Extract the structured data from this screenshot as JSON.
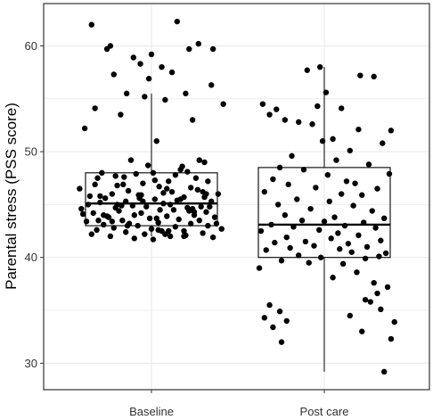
{
  "chart_data": {
    "type": "box",
    "title": "",
    "xlabel": "",
    "ylabel": "Parental stress (PSS score)",
    "categories": [
      "Baseline",
      "Post care"
    ],
    "ylim": [
      27.5,
      64
    ],
    "yticks": [
      30,
      40,
      50,
      60
    ],
    "grid": true,
    "legend": "none",
    "colors": {
      "points": "#000000",
      "box": "#000000",
      "grid": "#ebebeb",
      "frame": "#333333"
    },
    "boxes": [
      {
        "name": "Baseline",
        "min": 42.0,
        "q1": 43.0,
        "median": 45.1,
        "q3": 48.0,
        "max": 55.5
      },
      {
        "name": "Post care",
        "min": 29.2,
        "q1": 40.0,
        "median": 43.1,
        "q3": 48.5,
        "max": 58.0
      }
    ],
    "points": [
      {
        "name": "Baseline",
        "x": [
          -0.7,
          -0.48,
          0.3,
          0.72,
          -0.52,
          0.0,
          0.55,
          -0.21,
          0.44,
          -0.13,
          0.12,
          -0.44,
          0.7,
          -0.03,
          0.24,
          -0.29,
          0.4,
          0.84,
          -0.66,
          0.16,
          -0.36,
          -0.08,
          0.48,
          -0.78,
          0.06,
          -0.24,
          0.62,
          -0.58,
          0.36,
          0.02,
          -0.18,
          -0.42,
          0.28,
          -0.63,
          0.2,
          0.52,
          -0.1,
          0.66,
          -0.33,
          0.09,
          -0.84,
          0.46,
          -0.27,
          0.6,
          -0.46,
          0.14,
          0.78,
          -0.15,
          -0.72,
          0.38,
          -0.54,
          0.04,
          0.34,
          -0.3,
          0.7,
          -0.6,
          0.22,
          -0.4,
          0.58,
          -0.06,
          0.42,
          -0.82,
          0.1,
          0.26,
          -0.38,
          -0.12,
          0.64,
          -0.68,
          0.5,
          -0.2,
          0.18,
          -0.5,
          0.74,
          -0.02,
          0.32,
          -0.34,
          0.56,
          -0.76,
          0.08,
          -0.26,
          0.46,
          -0.56,
          0.66,
          -0.16,
          0.28,
          -0.44,
          0.82,
          0.0,
          -0.64,
          0.38,
          0.12,
          -0.3,
          0.6,
          -0.08,
          -0.7,
          0.4,
          -0.48,
          0.22,
          0.72,
          -0.2,
          0.04,
          -0.4,
          0.54,
          -0.6,
          0.3,
          0.14,
          -0.22,
          0.48,
          -0.8,
          0.06,
          -0.35,
          0.62,
          0.18,
          -0.52,
          0.44,
          -0.12,
          0.76,
          -0.42,
          0.08,
          -0.66,
          0.34,
          0.56,
          -0.04,
          -0.28,
          0.2,
          -0.56,
          0.68,
          -0.14,
          0.24,
          -0.46,
          0.5,
          -0.74,
          0.02,
          0.38,
          -0.32,
          0.64,
          -0.1,
          0.16,
          -0.62,
          0.42
        ],
        "y": [
          62.0,
          60.0,
          62.3,
          59.7,
          59.7,
          59.2,
          60.2,
          58.9,
          59.7,
          58.3,
          58.0,
          57.3,
          56.3,
          56.9,
          57.5,
          55.5,
          55.5,
          54.5,
          54.1,
          54.9,
          53.5,
          55.2,
          53.0,
          52.2,
          51.0,
          49.2,
          49.0,
          48.0,
          48.6,
          48.0,
          47.9,
          47.7,
          47.8,
          47.5,
          47.2,
          47.5,
          47.0,
          47.2,
          46.9,
          46.7,
          46.5,
          46.6,
          46.3,
          46.2,
          46.0,
          46.1,
          46.0,
          45.9,
          45.8,
          45.7,
          45.6,
          45.5,
          45.5,
          45.3,
          45.3,
          45.2,
          45.0,
          45.0,
          44.8,
          44.8,
          44.7,
          44.6,
          44.5,
          44.5,
          44.4,
          44.2,
          44.3,
          44.2,
          44.0,
          44.0,
          43.9,
          43.8,
          43.8,
          43.7,
          43.6,
          43.5,
          43.5,
          43.4,
          43.3,
          43.2,
          43.2,
          43.1,
          43.0,
          43.0,
          42.9,
          42.8,
          42.7,
          42.7,
          42.6,
          42.5,
          42.5,
          42.4,
          42.3,
          42.2,
          42.2,
          42.1,
          42.0,
          42.0,
          41.9,
          41.8,
          47.3,
          46.8,
          46.4,
          45.8,
          45.4,
          45.1,
          44.9,
          44.6,
          44.1,
          43.7,
          44.9,
          45.7,
          46.5,
          43.9,
          44.4,
          45.9,
          43.2,
          44.7,
          42.6,
          46.9,
          48.3,
          49.2,
          48.7,
          43.0,
          42.5,
          44.0,
          44.8,
          45.6,
          46.2,
          43.4,
          44.3,
          45.0,
          41.7,
          42.0,
          47.6,
          46.0,
          45.3,
          42.2,
          43.5,
          48.1
        ]
      },
      {
        "name": "Post care",
        "x": [
          -0.05,
          0.42,
          0.58,
          -0.2,
          0.02,
          -0.08,
          0.2,
          -0.72,
          -0.56,
          -0.64,
          -0.46,
          -0.3,
          0.4,
          -0.14,
          -0.02,
          0.78,
          0.1,
          0.68,
          -0.38,
          0.3,
          -0.52,
          0.14,
          0.52,
          -0.24,
          0.04,
          0.76,
          -0.6,
          0.26,
          -0.42,
          0.36,
          -0.1,
          0.62,
          -0.7,
          0.2,
          0.44,
          -0.32,
          0.06,
          -0.54,
          0.34,
          -0.16,
          0.56,
          -0.46,
          0.12,
          0.7,
          -0.26,
          0.0,
          0.46,
          -0.62,
          0.24,
          -0.36,
          0.6,
          -0.06,
          -0.74,
          0.16,
          0.4,
          -0.44,
          0.08,
          0.66,
          -0.22,
          -0.58,
          0.28,
          -0.12,
          0.5,
          -0.4,
          0.18,
          -0.68,
          0.32,
          0.72,
          -0.3,
          -0.04,
          0.48,
          -0.5,
          0.22,
          0.64,
          -0.18,
          -0.76,
          0.38,
          0.1,
          0.58,
          0.74,
          0.62,
          0.48,
          -0.64,
          -0.52,
          -0.7,
          -0.44,
          0.54,
          0.66,
          0.3,
          0.82,
          -0.6,
          0.44,
          0.78,
          -0.5,
          0.7
        ],
        "y": [
          58.0,
          57.2,
          57.1,
          57.7,
          55.6,
          54.3,
          54.1,
          54.5,
          54.0,
          53.5,
          53.0,
          52.8,
          52.1,
          52.6,
          51.0,
          52.0,
          51.2,
          50.8,
          49.6,
          50.1,
          48.5,
          49.2,
          48.8,
          48.3,
          47.8,
          47.9,
          47.4,
          47.2,
          46.9,
          47.0,
          46.6,
          46.5,
          46.2,
          46.0,
          45.9,
          45.5,
          45.3,
          45.0,
          44.9,
          44.6,
          44.4,
          44.0,
          43.8,
          43.7,
          43.5,
          43.4,
          43.3,
          43.1,
          43.0,
          42.9,
          42.8,
          42.6,
          42.5,
          42.3,
          42.1,
          41.9,
          41.8,
          41.6,
          41.5,
          41.4,
          41.3,
          41.1,
          41.0,
          40.9,
          40.8,
          40.7,
          40.5,
          40.4,
          40.2,
          40.0,
          39.9,
          39.7,
          39.4,
          40.1,
          39.5,
          39.0,
          38.6,
          38.1,
          37.6,
          37.2,
          36.6,
          36.0,
          35.5,
          34.9,
          34.3,
          34.0,
          35.8,
          35.1,
          34.5,
          33.9,
          33.4,
          33.0,
          32.3,
          32.0,
          29.2
        ]
      }
    ]
  }
}
